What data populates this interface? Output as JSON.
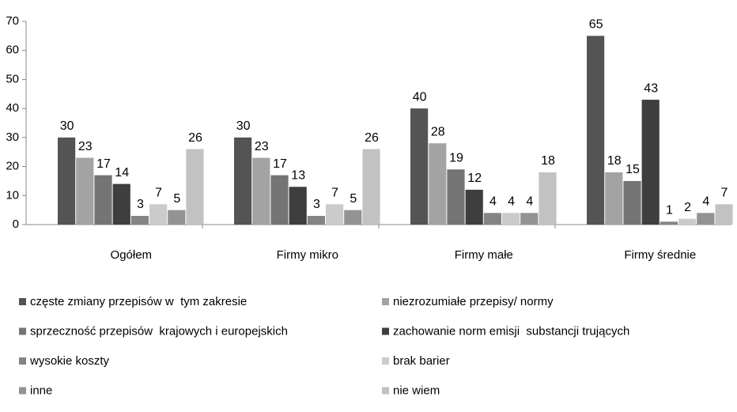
{
  "chart_data": {
    "type": "bar",
    "categories": [
      "Ogółem",
      "Firmy mikro",
      "Firmy małe",
      "Firmy średnie"
    ],
    "series": [
      {
        "name": "częste zmiany przepisów w  tym zakresie",
        "color": "#545454",
        "values": [
          30,
          30,
          40,
          65
        ]
      },
      {
        "name": "niezrozumiałe przepisy/ normy",
        "color": "#a3a3a3",
        "values": [
          23,
          23,
          28,
          18
        ]
      },
      {
        "name": "sprzeczność przepisów  krajowych i europejskich",
        "color": "#747474",
        "values": [
          17,
          17,
          19,
          15
        ]
      },
      {
        "name": "zachowanie norm emisji  substancji trujących",
        "color": "#3e3e3e",
        "values": [
          14,
          13,
          12,
          43
        ]
      },
      {
        "name": "wysokie koszty",
        "color": "#848484",
        "values": [
          3,
          3,
          4,
          1
        ]
      },
      {
        "name": "brak barier",
        "color": "#cbcbcb",
        "values": [
          7,
          7,
          4,
          2
        ]
      },
      {
        "name": "inne",
        "color": "#939393",
        "values": [
          5,
          5,
          4,
          4
        ]
      },
      {
        "name": "nie wiem",
        "color": "#c2c2c2",
        "values": [
          26,
          26,
          18,
          7
        ]
      }
    ],
    "ylim": [
      0,
      70
    ],
    "yticks": [
      0,
      10,
      20,
      30,
      40,
      50,
      60,
      70
    ],
    "grid": false,
    "legend": "bottom"
  }
}
